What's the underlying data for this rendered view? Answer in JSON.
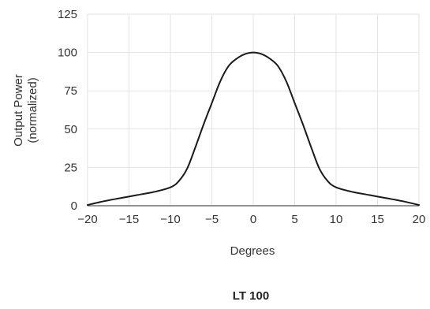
{
  "chart_data": {
    "type": "line",
    "caption": "LT 100",
    "title": "",
    "xlabel": "Degrees",
    "ylabel_lines": [
      "Output Power",
      "(normalized)"
    ],
    "xlim": [
      -20,
      20
    ],
    "ylim": [
      0,
      125
    ],
    "xticks": [
      -20,
      -15,
      -10,
      -5,
      0,
      5,
      10,
      15,
      20
    ],
    "xtick_labels": [
      "−20",
      "−15",
      "−10",
      "−5",
      "0",
      "5",
      "10",
      "15",
      "20"
    ],
    "yticks": [
      0,
      25,
      50,
      75,
      100,
      125
    ],
    "ytick_labels": [
      "0",
      "25",
      "50",
      "75",
      "100",
      "125"
    ],
    "grid": true,
    "line_color": "#1a1a1a",
    "series": [
      {
        "x": [
          -20,
          -18,
          -16,
          -14,
          -12,
          -10,
          -9,
          -8,
          -7,
          -6,
          -5,
          -4,
          -3,
          -2,
          -1,
          0,
          1,
          2,
          3,
          4,
          5,
          6,
          7,
          8,
          9,
          10,
          12,
          14,
          16,
          18,
          20
        ],
        "values": [
          0.5,
          3,
          5,
          7,
          9,
          12,
          16,
          24,
          38,
          53,
          67,
          81,
          91,
          96,
          99,
          100,
          99,
          96,
          91,
          81,
          67,
          53,
          38,
          24,
          16,
          12,
          9,
          7,
          5,
          3,
          0.5
        ]
      }
    ]
  }
}
